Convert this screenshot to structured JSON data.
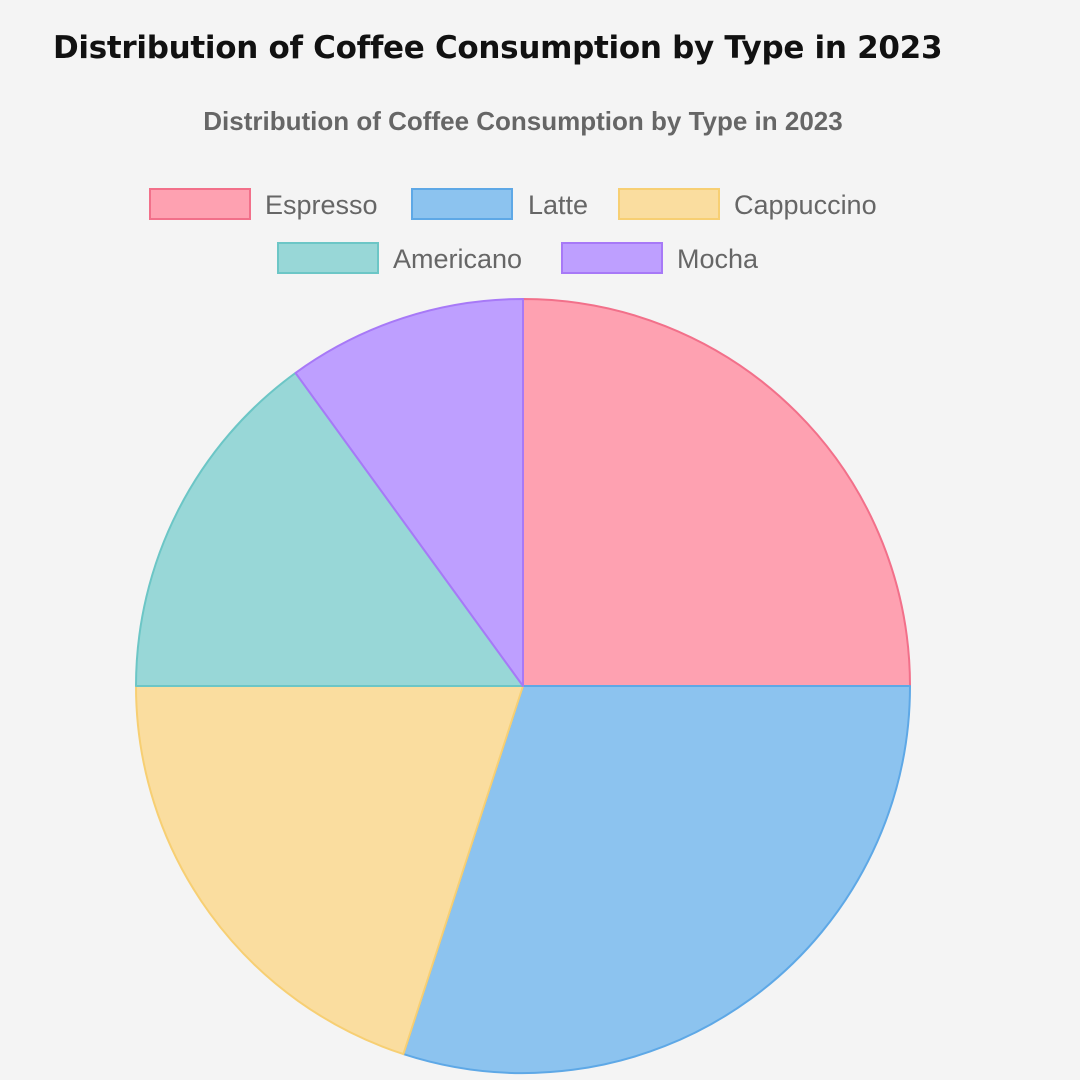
{
  "page": {
    "heading": "Distribution of Coffee Consumption by Type in 2023"
  },
  "chart_data": {
    "type": "pie",
    "title": "Distribution of Coffee Consumption by Type in 2023",
    "legend_position": "top",
    "categories": [
      "Espresso",
      "Latte",
      "Cappuccino",
      "Americano",
      "Mocha"
    ],
    "values": [
      25,
      30,
      20,
      15,
      10
    ],
    "colors": {
      "fill": [
        "#fea1b1",
        "#8cc3ef",
        "#fadd9f",
        "#98d7d7",
        "#be9fff"
      ],
      "stroke": [
        "#f2708a",
        "#5ea8e6",
        "#f7cf73",
        "#6cc6c6",
        "#a779f7"
      ]
    }
  }
}
